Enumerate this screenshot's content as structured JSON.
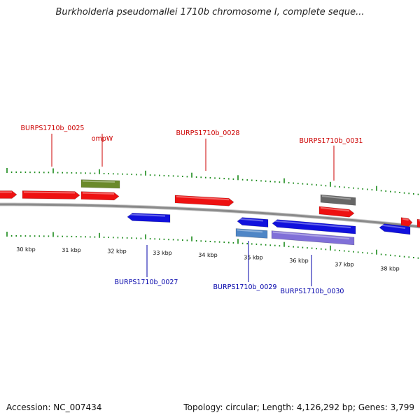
{
  "title": "Burkholderia pseudomallei 1710b chromosome I, complete seque...",
  "footer": {
    "accession": "Accession: NC_007434",
    "topology": "Topology: circular; Length: 4,126,292 bp; Genes: 3,799"
  },
  "colors": {
    "forward_gene": "#ee1111",
    "reverse_gene": "#1111dd",
    "rna_green": "#6b8a2a",
    "pseudo_gray": "#666666",
    "reverse_lightblue": "#4f86c6",
    "reverse_purple": "#8070d8",
    "tick_green": "#1a8a1a",
    "backbone": "#8a8a8a",
    "label_forward": "#cc0000",
    "label_reverse": "#0000aa"
  },
  "scale": {
    "ticks": [
      "30 kbp",
      "31 kbp",
      "32 kbp",
      "33 kbp",
      "34 kbp",
      "35 kbp",
      "36 kbp",
      "37 kbp",
      "38 kbp"
    ]
  },
  "gene_labels": {
    "forward": [
      "BURPS1710b_0025",
      "ompW",
      "BURPS1710b_0028",
      "BURPS1710b_0031"
    ],
    "reverse": [
      "BURPS1710b_0027",
      "BURPS1710b_0029",
      "BURPS1710b_0030"
    ]
  }
}
